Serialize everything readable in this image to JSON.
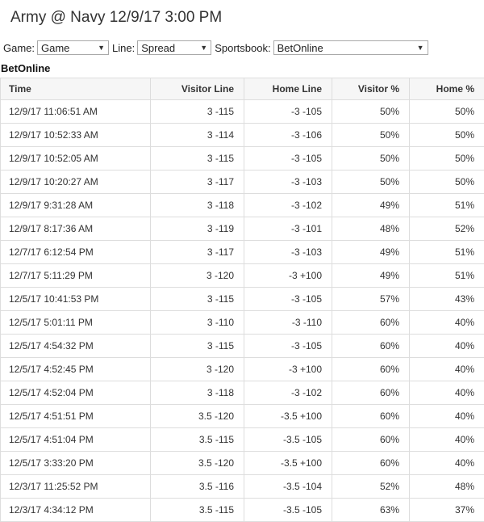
{
  "page": {
    "title": "Army @ Navy 12/9/17 3:00 PM"
  },
  "filters": {
    "game_label": "Game:",
    "game_value": "Game",
    "line_label": "Line:",
    "line_value": "Spread",
    "sportsbook_label": "Sportsbook:",
    "sportsbook_value": "BetOnline"
  },
  "sportsbook_heading": "BetOnline",
  "table": {
    "columns": [
      "Time",
      "Visitor Line",
      "Home Line",
      "Visitor %",
      "Home %"
    ],
    "rows": [
      [
        "12/9/17 11:06:51 AM",
        "3 -115",
        "-3 -105",
        "50%",
        "50%"
      ],
      [
        "12/9/17 10:52:33 AM",
        "3 -114",
        "-3 -106",
        "50%",
        "50%"
      ],
      [
        "12/9/17 10:52:05 AM",
        "3 -115",
        "-3 -105",
        "50%",
        "50%"
      ],
      [
        "12/9/17 10:20:27 AM",
        "3 -117",
        "-3 -103",
        "50%",
        "50%"
      ],
      [
        "12/9/17 9:31:28 AM",
        "3 -118",
        "-3 -102",
        "49%",
        "51%"
      ],
      [
        "12/9/17 8:17:36 AM",
        "3 -119",
        "-3 -101",
        "48%",
        "52%"
      ],
      [
        "12/7/17 6:12:54 PM",
        "3 -117",
        "-3 -103",
        "49%",
        "51%"
      ],
      [
        "12/7/17 5:11:29 PM",
        "3 -120",
        "-3 +100",
        "49%",
        "51%"
      ],
      [
        "12/5/17 10:41:53 PM",
        "3 -115",
        "-3 -105",
        "57%",
        "43%"
      ],
      [
        "12/5/17 5:01:11 PM",
        "3 -110",
        "-3 -110",
        "60%",
        "40%"
      ],
      [
        "12/5/17 4:54:32 PM",
        "3 -115",
        "-3 -105",
        "60%",
        "40%"
      ],
      [
        "12/5/17 4:52:45 PM",
        "3 -120",
        "-3 +100",
        "60%",
        "40%"
      ],
      [
        "12/5/17 4:52:04 PM",
        "3 -118",
        "-3 -102",
        "60%",
        "40%"
      ],
      [
        "12/5/17 4:51:51 PM",
        "3.5 -120",
        "-3.5 +100",
        "60%",
        "40%"
      ],
      [
        "12/5/17 4:51:04 PM",
        "3.5 -115",
        "-3.5 -105",
        "60%",
        "40%"
      ],
      [
        "12/5/17 3:33:20 PM",
        "3.5 -120",
        "-3.5 +100",
        "60%",
        "40%"
      ],
      [
        "12/3/17 11:25:52 PM",
        "3.5 -116",
        "-3.5 -104",
        "52%",
        "48%"
      ],
      [
        "12/3/17 4:34:12 PM",
        "3.5 -115",
        "-3.5 -105",
        "63%",
        "37%"
      ]
    ]
  }
}
